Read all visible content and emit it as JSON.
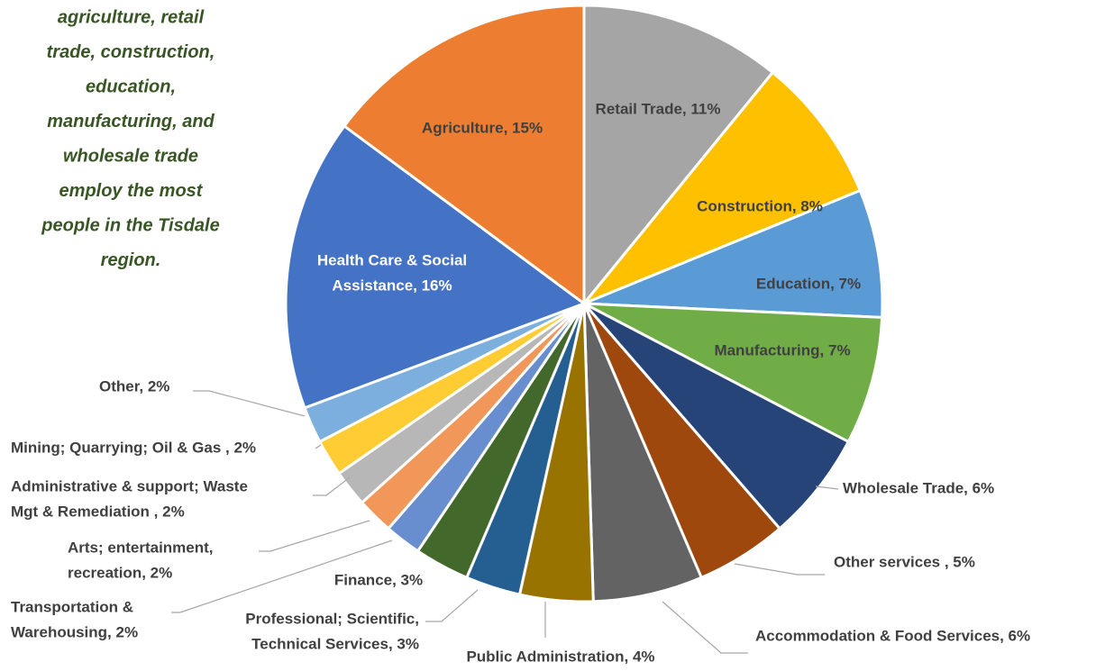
{
  "chart_data": {
    "type": "pie",
    "annotation": [
      "agriculture, retail",
      "trade, construction,",
      "education,",
      "manufacturing, and",
      "wholesale trade",
      "employ the most",
      "people in the Tisdale",
      "region."
    ],
    "values": [
      11,
      8,
      7,
      7,
      6,
      5,
      6,
      4,
      3,
      3,
      2,
      2,
      2,
      2,
      2,
      16,
      15
    ],
    "value_labels": [
      [
        "Retail Trade, 11%"
      ],
      [
        "Construction, 8%"
      ],
      [
        "Education, 7%"
      ],
      [
        "Manufacturing, 7%"
      ],
      [
        "Wholesale Trade, 6%"
      ],
      [
        "Other services , 5%"
      ],
      [
        "Accommodation & Food Services, 6%"
      ],
      [
        "Public Administration, 4%"
      ],
      [
        "Professional; Scientific,",
        "Technical Services, 3%"
      ],
      [
        "Finance, 3%"
      ],
      [
        "Transportation &",
        "Warehousing, 2%"
      ],
      [
        "Arts; entertainment,",
        "recreation, 2%"
      ],
      [
        "Administrative & support; Waste",
        "Mgt & Remediation , 2%"
      ],
      [
        "Mining; Quarrying; Oil & Gas , 2%"
      ],
      [
        "Other, 2%"
      ],
      [
        "Health Care & Social",
        "Assistance, 16%"
      ],
      [
        "Agriculture, 15%"
      ]
    ],
    "colors": [
      "#a5a5a5",
      "#ffc000",
      "#5b9bd5",
      "#70ad47",
      "#264478",
      "#9e480e",
      "#636363",
      "#997300",
      "#255e91",
      "#43682b",
      "#698ed0",
      "#f1975a",
      "#b7b7b7",
      "#ffcd33",
      "#7cafdd",
      "#4472c4",
      "#ed7d31"
    ]
  }
}
